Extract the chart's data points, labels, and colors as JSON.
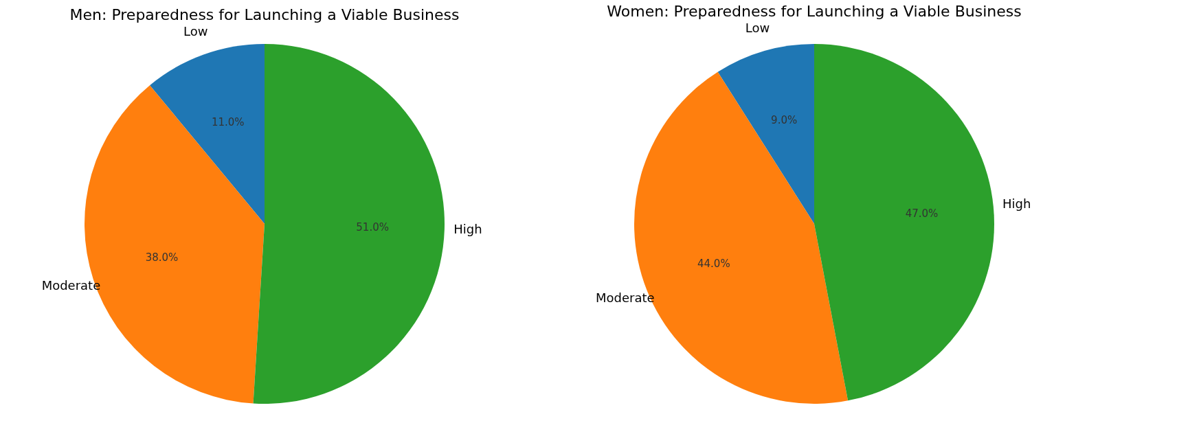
{
  "chart_data": [
    {
      "type": "pie",
      "title": "Men: Preparedness for Launching a Viable Business",
      "categories": [
        "Low",
        "Moderate",
        "High"
      ],
      "values": [
        11,
        38,
        51
      ],
      "colors": [
        "#1f77b4",
        "#ff7f0e",
        "#2ca02c"
      ],
      "value_labels": [
        "11.0%",
        "38.0%",
        "51.0%"
      ]
    },
    {
      "type": "pie",
      "title": "Women: Preparedness for Launching a Viable Business",
      "categories": [
        "Low",
        "Moderate",
        "High"
      ],
      "values": [
        9,
        44,
        47
      ],
      "colors": [
        "#1f77b4",
        "#ff7f0e",
        "#2ca02c"
      ],
      "value_labels": [
        "9.0%",
        "44.0%",
        "47.0%"
      ]
    }
  ]
}
